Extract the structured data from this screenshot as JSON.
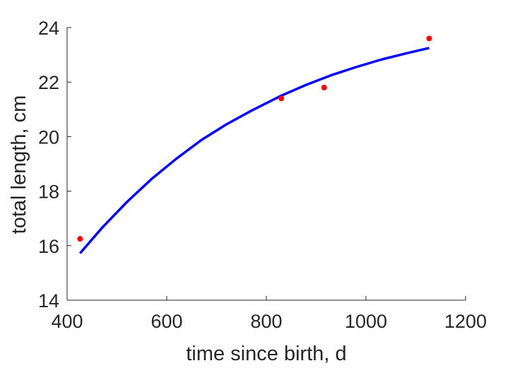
{
  "chart_data": {
    "type": "scatter",
    "xlabel": "time since birth, d",
    "ylabel": "total length, cm",
    "xlim": [
      400,
      1200
    ],
    "ylim": [
      14,
      24
    ],
    "xticks": [
      "400",
      "600",
      "800",
      "1000",
      "1200"
    ],
    "yticks": [
      "14",
      "16",
      "18",
      "20",
      "22",
      "24"
    ],
    "grid": false,
    "legend": "none",
    "series": [
      {
        "kind": "points",
        "color": "#ff0000",
        "x": [
          426,
          830,
          916,
          1127
        ],
        "y": [
          16.25,
          21.4,
          21.8,
          23.6
        ]
      },
      {
        "kind": "line",
        "color": "#0000ff",
        "x": [
          426,
          470,
          520,
          570,
          620,
          670,
          720,
          770,
          830,
          880,
          930,
          980,
          1030,
          1080,
          1127
        ],
        "y": [
          15.72,
          16.65,
          17.6,
          18.45,
          19.2,
          19.88,
          20.45,
          20.95,
          21.5,
          21.9,
          22.25,
          22.55,
          22.82,
          23.05,
          23.25
        ]
      }
    ]
  }
}
